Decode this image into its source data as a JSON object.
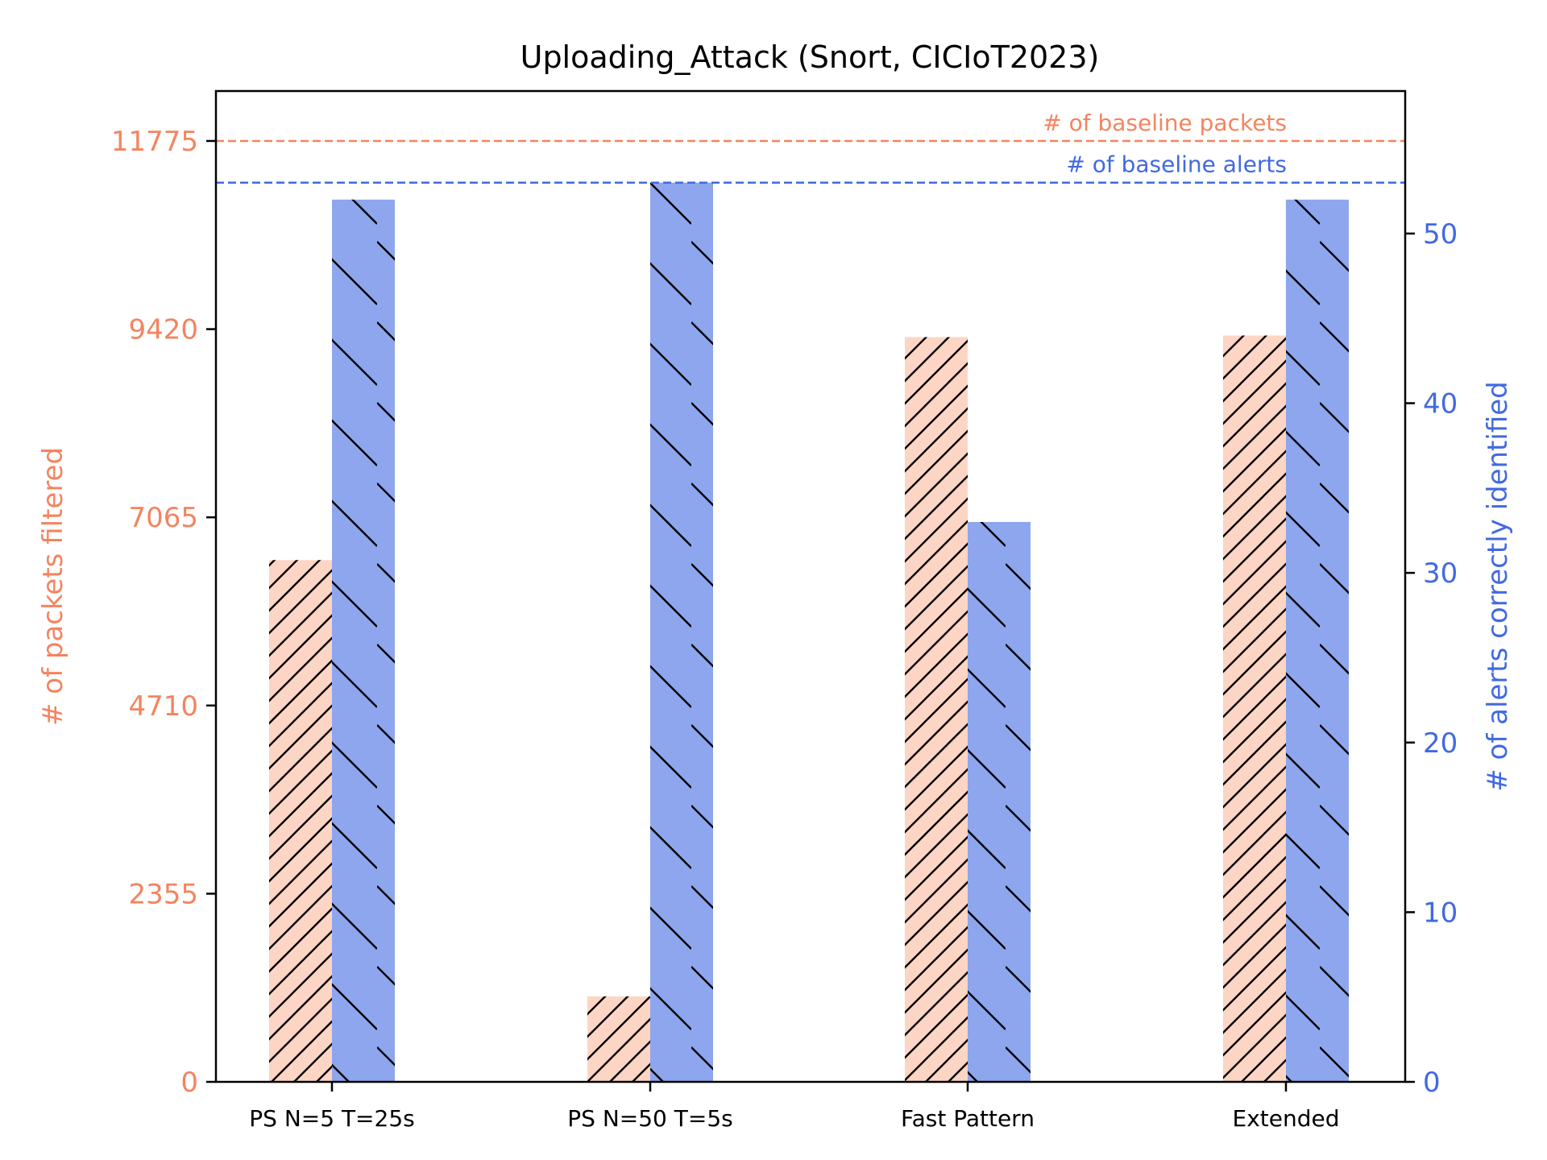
{
  "chart_data": {
    "type": "bar",
    "title": "Uploading_Attack (Snort, CICIoT2023)",
    "categories": [
      "PS N=5 T=25s",
      "PS N=50 T=5s",
      "Fast Pattern",
      "Extended"
    ],
    "left_axis": {
      "label": "# of packets filtered",
      "ticks": [
        0,
        2355,
        4710,
        7065,
        9420,
        11775
      ],
      "ylim": [
        0,
        12400
      ],
      "color": "#f4845f"
    },
    "right_axis": {
      "label": "# of alerts correctly identified",
      "ticks": [
        0,
        10,
        20,
        30,
        40,
        50
      ],
      "ylim": [
        0,
        58.4
      ],
      "color": "#4169e1"
    },
    "series": [
      {
        "name": "packets",
        "axis": "left",
        "values": [
          6530,
          1070,
          9320,
          9340
        ],
        "fill": "#fdd5c4",
        "hatch": "forward"
      },
      {
        "name": "alerts",
        "axis": "right",
        "values": [
          52,
          53,
          33,
          52
        ],
        "fill": "#8da6ee",
        "hatch": "backward"
      }
    ],
    "reference_lines": [
      {
        "label": "# of baseline packets",
        "axis": "left",
        "value": 11775,
        "color": "#f4845f"
      },
      {
        "label": "# of baseline alerts",
        "axis": "right",
        "value": 53,
        "color": "#4169e1"
      }
    ],
    "grid": false
  }
}
